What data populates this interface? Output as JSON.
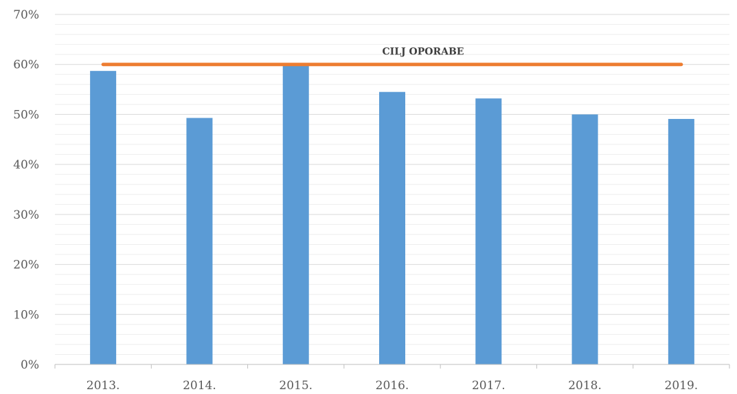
{
  "chart_data": {
    "type": "bar",
    "categories": [
      "2013.",
      "2014.",
      "2015.",
      "2016.",
      "2017.",
      "2018.",
      "2019."
    ],
    "values": [
      58.7,
      49.3,
      60.0,
      54.5,
      53.2,
      50.0,
      49.1
    ],
    "ylim": [
      0,
      70
    ],
    "y_unit": "%",
    "yticks": [
      "0%",
      "10%",
      "20%",
      "30%",
      "40%",
      "50%",
      "60%",
      "70%"
    ],
    "grid": "horizontal (major and minor)",
    "bar_color": "#5B9BD5",
    "target": {
      "label": "CILJ OPORABE",
      "value": 60,
      "color": "#ED7D31"
    }
  }
}
